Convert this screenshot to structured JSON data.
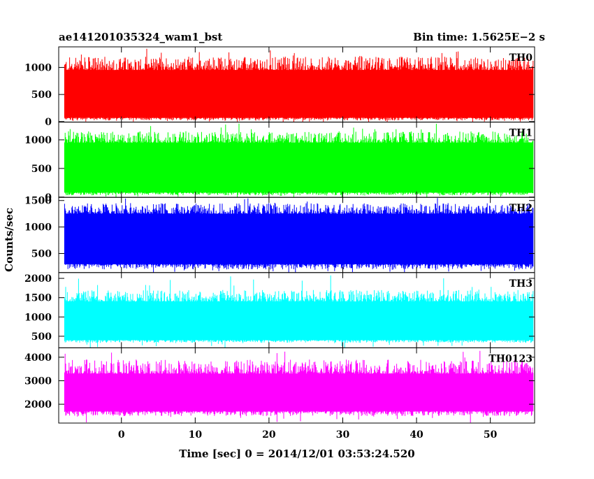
{
  "header": {
    "left_title": "ae141201035324_wam1_bst",
    "right_title": "Bin time: 1.5625E−2 s"
  },
  "chart_data": {
    "type": "line",
    "xlabel": "Time [sec] 0 = 2014/12/01 03:53:24.520",
    "ylabel": "Counts/sec",
    "x_range": [
      -8.5,
      56
    ],
    "data_x_range": [
      -7.7,
      55.8
    ],
    "bin_time_s": 0.015625,
    "x_ticks": [
      0,
      10,
      20,
      30,
      40,
      50
    ],
    "panels": [
      {
        "name": "TH0",
        "color": "#ff0000",
        "ylim": [
          -10,
          1380
        ],
        "yticks": [
          0,
          500,
          1000
        ],
        "envelope_low": 70,
        "envelope_high": 950,
        "typical_min": 20,
        "typical_max": 1200,
        "peak_max": 1350
      },
      {
        "name": "TH1",
        "color": "#00ff00",
        "ylim": [
          -5,
          1310
        ],
        "yticks": [
          0,
          500,
          1000
        ],
        "envelope_low": 80,
        "envelope_high": 950,
        "typical_min": 30,
        "typical_max": 1150,
        "peak_max": 1290
      },
      {
        "name": "TH2",
        "color": "#0000ff",
        "ylim": [
          140,
          1560
        ],
        "yticks": [
          500,
          1000,
          1500
        ],
        "envelope_low": 300,
        "envelope_high": 1250,
        "typical_min": 200,
        "typical_max": 1450,
        "peak_max": 1550
      },
      {
        "name": "TH3",
        "color": "#00ffff",
        "ylim": [
          200,
          2150
        ],
        "yticks": [
          500,
          1000,
          1500,
          2000
        ],
        "envelope_low": 400,
        "envelope_high": 1400,
        "typical_min": 330,
        "typical_max": 1700,
        "peak_max": 2080
      },
      {
        "name": "TH0123",
        "color": "#ff00ff",
        "ylim": [
          1200,
          4400
        ],
        "yticks": [
          2000,
          3000,
          4000
        ],
        "envelope_low": 1700,
        "envelope_high": 3300,
        "typical_min": 1500,
        "typical_max": 3900,
        "peak_max": 4300
      }
    ]
  }
}
